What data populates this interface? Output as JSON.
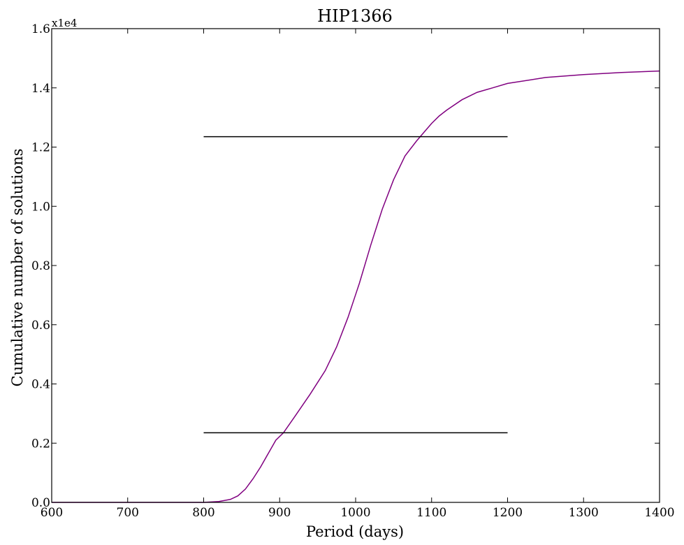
{
  "chart_data": {
    "type": "line",
    "title": "HIP1366",
    "xlabel": "Period (days)",
    "ylabel": "Cumulative number of solutions",
    "y_offset_label": "x1e4",
    "xlim": [
      600,
      1400
    ],
    "ylim": [
      0.0,
      1.6
    ],
    "xticks": [
      600,
      700,
      800,
      900,
      1000,
      1100,
      1200,
      1300,
      1400
    ],
    "xtick_labels": [
      "600",
      "700",
      "800",
      "900",
      "1000",
      "1100",
      "1200",
      "1300",
      "1400"
    ],
    "yticks": [
      0.0,
      0.2,
      0.4,
      0.6,
      0.8,
      1.0,
      1.2,
      1.4,
      1.6
    ],
    "ytick_labels": [
      "0.0",
      "0.2",
      "0.4",
      "0.6",
      "0.8",
      "1.0",
      "1.2",
      "1.4",
      "1.6"
    ],
    "grid": false,
    "series": [
      {
        "color": "#800080",
        "x": [
          600,
          700,
          800,
          820,
          835,
          845,
          855,
          865,
          875,
          885,
          895,
          905,
          920,
          940,
          960,
          975,
          990,
          1005,
          1020,
          1035,
          1050,
          1065,
          1080,
          1090,
          1100,
          1110,
          1120,
          1140,
          1160,
          1180,
          1200,
          1250,
          1300,
          1350,
          1400
        ],
        "y": [
          0.0,
          0.0,
          0.0,
          0.003,
          0.01,
          0.022,
          0.045,
          0.08,
          0.12,
          0.165,
          0.21,
          0.235,
          0.29,
          0.365,
          0.445,
          0.525,
          0.625,
          0.74,
          0.87,
          0.99,
          1.09,
          1.17,
          1.22,
          1.25,
          1.28,
          1.305,
          1.325,
          1.36,
          1.385,
          1.4,
          1.415,
          1.435,
          1.445,
          1.452,
          1.457
        ]
      }
    ],
    "hlines": [
      {
        "y": 0.235,
        "xmin": 800,
        "xmax": 1200,
        "color": "#000000"
      },
      {
        "y": 1.235,
        "xmin": 800,
        "xmax": 1200,
        "color": "#000000"
      }
    ]
  }
}
